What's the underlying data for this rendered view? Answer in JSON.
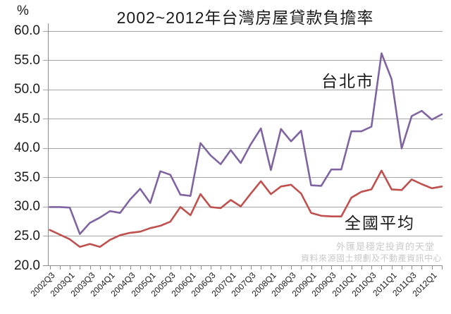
{
  "chart_data": {
    "type": "line",
    "title": "2002~2012年台灣房屋貸款負擔率",
    "y_unit_label": "%",
    "ylim": [
      20,
      60
    ],
    "ytick_step": 5,
    "y_tick_labels": [
      "60.0",
      "55.0",
      "50.0",
      "45.0",
      "40.0",
      "35.0",
      "30.0",
      "25.0",
      "20.0"
    ],
    "x_tick_labels": [
      "2002Q3",
      "2003Q1",
      "2003Q3",
      "2004Q1",
      "2004Q3",
      "2005Q1",
      "2005Q3",
      "2006Q1",
      "2006Q3",
      "2007Q1",
      "2007Q3",
      "2008Q1",
      "2008Q3",
      "2009Q1",
      "2009Q3",
      "2010Q1",
      "2010Q3",
      "2011Q1",
      "2011Q3",
      "2012Q1"
    ],
    "categories": [
      "2002Q3",
      "2002Q4",
      "2003Q1",
      "2003Q2",
      "2003Q3",
      "2003Q4",
      "2004Q1",
      "2004Q2",
      "2004Q3",
      "2004Q4",
      "2005Q1",
      "2005Q2",
      "2005Q3",
      "2005Q4",
      "2006Q1",
      "2006Q2",
      "2006Q3",
      "2006Q4",
      "2007Q1",
      "2007Q2",
      "2007Q3",
      "2007Q4",
      "2008Q1",
      "2008Q2",
      "2008Q3",
      "2008Q4",
      "2009Q1",
      "2009Q2",
      "2009Q3",
      "2009Q4",
      "2010Q1",
      "2010Q2",
      "2010Q3",
      "2010Q4",
      "2011Q1",
      "2011Q2",
      "2011Q3",
      "2011Q4",
      "2012Q1",
      "2012Q2"
    ],
    "grid": "horizontal",
    "legend_position": "inline-annotations",
    "series": [
      {
        "id": "taipei-city",
        "name": "台北市",
        "color": "#8064A2",
        "values": [
          30.0,
          30.0,
          29.9,
          25.4,
          27.3,
          28.2,
          29.3,
          29.0,
          31.3,
          33.1,
          30.7,
          36.1,
          35.5,
          32.1,
          31.9,
          40.9,
          38.8,
          37.3,
          39.7,
          37.5,
          40.7,
          43.4,
          36.3,
          43.3,
          41.2,
          43.0,
          33.7,
          33.6,
          36.4,
          36.4,
          42.9,
          42.9,
          43.7,
          56.2,
          51.8,
          40.0,
          45.5,
          46.4,
          44.9,
          45.8
        ]
      },
      {
        "id": "national-average",
        "name": "全國平均",
        "color": "#C0504D",
        "values": [
          26.1,
          25.3,
          24.5,
          23.2,
          23.7,
          23.2,
          24.4,
          25.2,
          25.6,
          25.8,
          26.4,
          26.8,
          27.5,
          30.0,
          28.6,
          32.2,
          30.0,
          29.8,
          31.2,
          30.1,
          32.3,
          34.4,
          32.2,
          33.5,
          33.8,
          32.3,
          29.0,
          28.5,
          28.4,
          28.4,
          31.6,
          32.6,
          33.0,
          36.2,
          33.0,
          32.9,
          34.7,
          33.9,
          33.2,
          33.5
        ]
      }
    ]
  },
  "watermark": {
    "line1": "外匯是穩定投資的天堂",
    "line2": "資料來源國土規劃及不動產資訊中心"
  },
  "colors": {
    "gridline": "#a6a6a6",
    "axis": "#8c8c8c",
    "text": "#1a1a1a",
    "watermark": "#c9c9c9",
    "taipei_line": "#8064A2",
    "national_line": "#C0504D"
  }
}
